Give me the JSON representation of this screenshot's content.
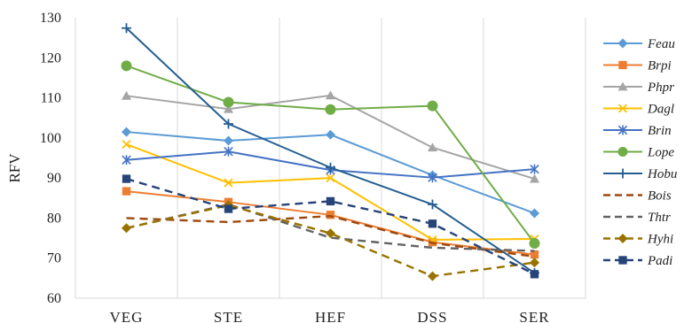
{
  "chart_data": {
    "type": "line",
    "title": "",
    "xlabel": "",
    "ylabel": "RFV",
    "ylim": [
      60,
      130
    ],
    "yticks": [
      60,
      70,
      80,
      90,
      100,
      110,
      120,
      130
    ],
    "categories": [
      "VEG",
      "STE",
      "HEF",
      "DSS",
      "SER"
    ],
    "grid": "vertical",
    "legend": "right",
    "series": [
      {
        "name": "Feau",
        "values": [
          101.5,
          99.3,
          100.8,
          90.7,
          81.2
        ],
        "color": "#5b9bd5",
        "marker": "diamond",
        "dash": false
      },
      {
        "name": "Brpi",
        "values": [
          86.7,
          84.0,
          80.8,
          74.0,
          70.9
        ],
        "color": "#ed7d31",
        "marker": "square",
        "dash": false
      },
      {
        "name": "Phpr",
        "values": [
          110.5,
          107.2,
          110.6,
          97.6,
          89.8
        ],
        "color": "#a5a5a5",
        "marker": "triangle",
        "dash": false
      },
      {
        "name": "Dagl",
        "values": [
          98.4,
          88.8,
          90.0,
          74.6,
          74.8
        ],
        "color": "#ffc000",
        "marker": "x",
        "dash": false
      },
      {
        "name": "Brin",
        "values": [
          94.5,
          96.6,
          92.0,
          90.1,
          92.2
        ],
        "color": "#4472c4",
        "marker": "star",
        "dash": false
      },
      {
        "name": "Lope",
        "values": [
          118.0,
          108.9,
          107.1,
          108.0,
          73.7
        ],
        "color": "#70ad47",
        "marker": "circle",
        "dash": false
      },
      {
        "name": "Hobu",
        "values": [
          127.4,
          103.5,
          92.6,
          83.4,
          66.3
        ],
        "color": "#255e91",
        "marker": "plus",
        "dash": false
      },
      {
        "name": "Bois",
        "values": [
          80.0,
          79.0,
          80.5,
          73.8,
          70.4
        ],
        "color": "#9e480e",
        "marker": "none",
        "dash": true
      },
      {
        "name": "Thtr",
        "values": [
          77.5,
          83.4,
          75.1,
          72.6,
          71.8
        ],
        "color": "#636363",
        "marker": "none",
        "dash": true
      },
      {
        "name": "Hyhi",
        "values": [
          77.5,
          83.2,
          76.2,
          65.5,
          68.9
        ],
        "color": "#997300",
        "marker": "diamond",
        "dash": true
      },
      {
        "name": "Padi",
        "values": [
          89.8,
          82.3,
          84.2,
          78.6,
          66.0
        ],
        "color": "#264478",
        "marker": "square",
        "dash": true
      }
    ]
  }
}
